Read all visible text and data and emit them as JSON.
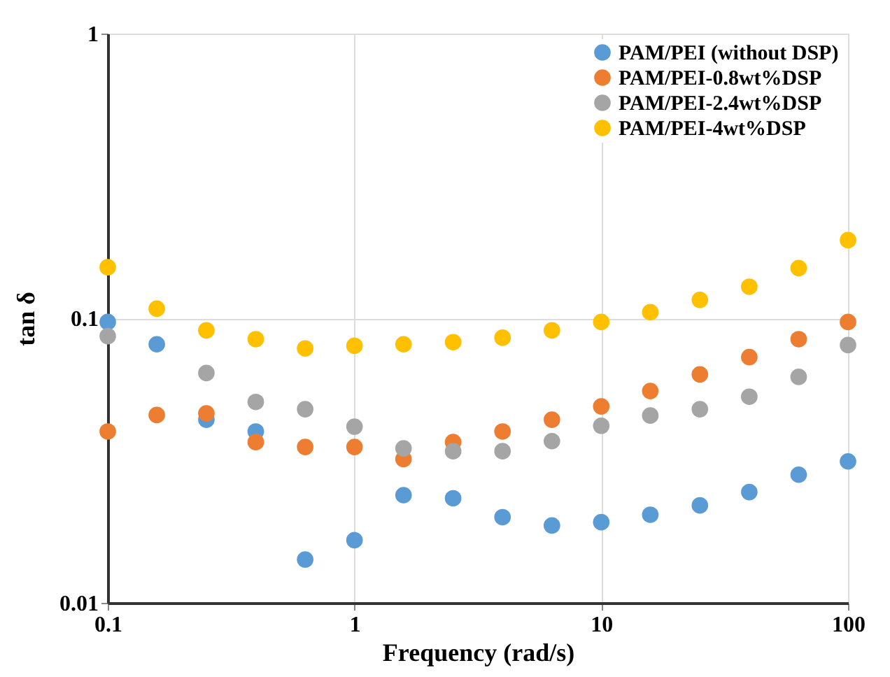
{
  "chart_data": {
    "type": "scatter",
    "xlabel": "Frequency (rad/s)",
    "ylabel": "tan δ",
    "log": "xy",
    "grid": true,
    "legend": "top right",
    "marker": "circle",
    "x": [
      0.1,
      0.158,
      0.251,
      0.398,
      0.631,
      1,
      1.58,
      2.51,
      3.98,
      6.31,
      10,
      15.8,
      25.1,
      39.8,
      63.1,
      100
    ],
    "xlim": [
      0.1,
      100
    ],
    "xticks": [
      0.1,
      1,
      10,
      100
    ],
    "ylim": [
      0.01,
      1
    ],
    "yticks": [
      0.01,
      0.1,
      1
    ],
    "series": [
      {
        "name": "PAM/PEI (without DSP)",
        "color": "#5b9bd5",
        "values": [
          0.097,
          0.081,
          0.044,
          0.04,
          0.0142,
          0.0166,
          0.0239,
          0.0233,
          0.02,
          0.0187,
          0.0192,
          0.0204,
          0.022,
          0.0245,
          0.0282,
          0.0314
        ]
      },
      {
        "name": "PAM/PEI-0.8wt%DSP",
        "color": "#ed7d31",
        "values": [
          0.04,
          0.0457,
          0.0463,
          0.0367,
          0.0353,
          0.0353,
          0.032,
          0.0367,
          0.04,
          0.044,
          0.049,
          0.0555,
          0.0635,
          0.073,
          0.0844,
          0.097
        ]
      },
      {
        "name": "PAM/PEI-2.4wt%DSP",
        "color": "#a5a5a5",
        "values": [
          0.0865,
          null,
          0.0642,
          0.0508,
          0.0479,
          0.0416,
          0.0349,
          0.0341,
          0.0341,
          0.037,
          0.0419,
          0.0455,
          0.0479,
          0.053,
          0.0622,
          0.0805
        ]
      },
      {
        "name": "PAM/PEI-4wt%DSP",
        "color": "#ffc000",
        "values": [
          0.151,
          0.108,
          0.0906,
          0.0844,
          0.0783,
          0.08,
          0.081,
          0.0824,
          0.0854,
          0.0906,
          0.097,
          0.105,
          0.116,
          0.129,
          0.15,
          0.188
        ]
      }
    ]
  }
}
